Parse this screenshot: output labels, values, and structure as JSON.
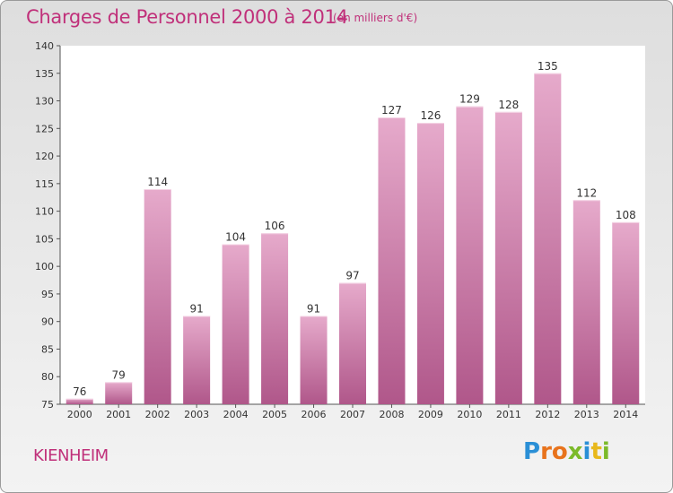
{
  "header": {
    "title": "Charges de Personnel 2000 à 2014",
    "subtitle": "(en milliers d'€)"
  },
  "footer": {
    "place": "KIENHEIM",
    "logo_text": "Proxiti"
  },
  "colors": {
    "accent": "#c0307a",
    "bar_top": "#e6aacb",
    "bar_bottom": "#b0578a",
    "axis": "#555555"
  },
  "chart_data": {
    "type": "bar",
    "categories": [
      "2000",
      "2001",
      "2002",
      "2003",
      "2004",
      "2005",
      "2006",
      "2007",
      "2008",
      "2009",
      "2010",
      "2011",
      "2012",
      "2013",
      "2014"
    ],
    "values": [
      76,
      79,
      114,
      91,
      104,
      106,
      91,
      97,
      127,
      126,
      129,
      128,
      135,
      112,
      108
    ],
    "ylim": [
      75,
      140
    ],
    "yticks": [
      75,
      80,
      85,
      90,
      95,
      100,
      105,
      110,
      115,
      120,
      125,
      130,
      135,
      140
    ],
    "grid": false,
    "data_labels": true,
    "title": "Charges de Personnel 2000 à 2014",
    "ylabel": "(en milliers d'€)",
    "xlabel": ""
  }
}
